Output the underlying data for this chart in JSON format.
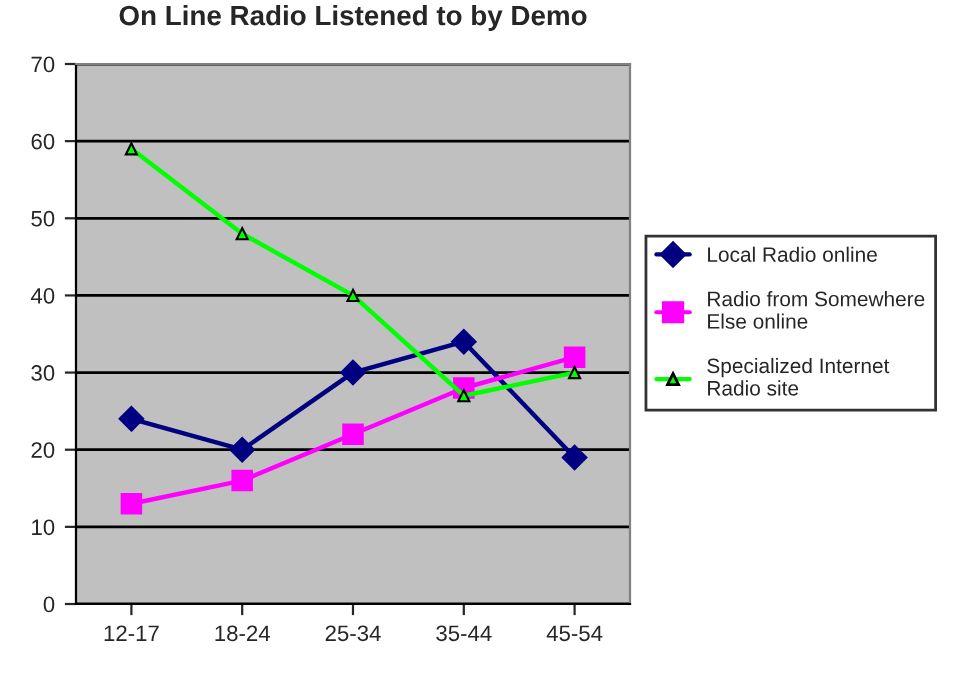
{
  "chart_data": {
    "type": "line",
    "title": "On Line Radio Listened to by Demo",
    "categories": [
      "12-17",
      "18-24",
      "25-34",
      "35-44",
      "45-54"
    ],
    "series": [
      {
        "name": "Local Radio online",
        "color": "#000080",
        "marker": "diamond",
        "values": [
          24,
          20,
          30,
          34,
          19
        ]
      },
      {
        "name": "Radio from Somewhere Else online",
        "color": "#ff00ff",
        "marker": "square",
        "values": [
          13,
          16,
          22,
          28,
          32
        ]
      },
      {
        "name": "Specialized Internet Radio site",
        "color": "#00ff00",
        "marker": "triangle",
        "values": [
          59,
          48,
          40,
          27,
          30
        ]
      }
    ],
    "ylim": [
      0,
      70
    ],
    "yticks": [
      0,
      10,
      20,
      30,
      40,
      50,
      60,
      70
    ],
    "grid": "y",
    "legend": "right"
  }
}
